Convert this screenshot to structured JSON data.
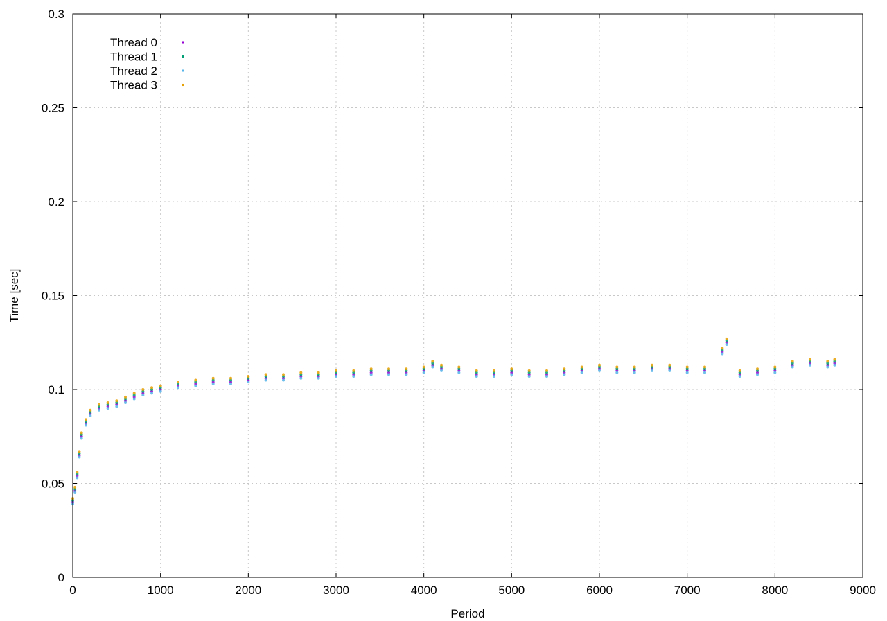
{
  "chart_data": {
    "type": "scatter",
    "xlabel": "Period",
    "ylabel": "Time [sec]",
    "xlim": [
      0,
      9000
    ],
    "ylim": [
      0,
      0.3
    ],
    "x_ticks": [
      0,
      1000,
      2000,
      3000,
      4000,
      5000,
      6000,
      7000,
      8000,
      9000
    ],
    "x_tick_labels": [
      "0",
      "1000",
      "2000",
      "3000",
      "4000",
      "5000",
      "6000",
      "7000",
      "8000",
      "9000"
    ],
    "y_ticks": [
      0,
      0.05,
      0.1,
      0.15,
      0.2,
      0.25,
      0.3
    ],
    "y_tick_labels": [
      "0",
      "0.05",
      "0.1",
      "0.15",
      "0.2",
      "0.25",
      "0.3"
    ],
    "grid": true,
    "legend_position": "top-left",
    "series": [
      {
        "name": "Thread 0",
        "color": "#9400d3",
        "x": [
          0,
          25,
          50,
          75,
          100,
          150,
          200,
          300,
          400,
          500,
          600,
          700,
          800,
          900,
          1000,
          1200,
          1400,
          1600,
          1800,
          2000,
          2200,
          2400,
          2600,
          2800,
          3000,
          3200,
          3400,
          3600,
          3800,
          4000,
          4100,
          4200,
          4400,
          4600,
          4800,
          5000,
          5200,
          5400,
          5600,
          5800,
          6000,
          6200,
          6400,
          6600,
          6800,
          7000,
          7200,
          7400,
          7450,
          7600,
          7800,
          8000,
          8200,
          8400,
          8600,
          8680
        ],
        "y": [
          0.04,
          0.046,
          0.054,
          0.065,
          0.075,
          0.082,
          0.087,
          0.09,
          0.091,
          0.092,
          0.094,
          0.096,
          0.098,
          0.099,
          0.1,
          0.102,
          0.103,
          0.104,
          0.104,
          0.105,
          0.106,
          0.106,
          0.107,
          0.107,
          0.108,
          0.108,
          0.109,
          0.109,
          0.109,
          0.11,
          0.113,
          0.111,
          0.11,
          0.108,
          0.108,
          0.109,
          0.108,
          0.108,
          0.109,
          0.11,
          0.111,
          0.11,
          0.11,
          0.111,
          0.111,
          0.11,
          0.11,
          0.12,
          0.125,
          0.108,
          0.109,
          0.11,
          0.113,
          0.114,
          0.113,
          0.114
        ]
      },
      {
        "name": "Thread 1",
        "color": "#009e73",
        "x": [
          0,
          25,
          50,
          75,
          100,
          150,
          200,
          300,
          400,
          500,
          600,
          700,
          800,
          900,
          1000,
          1200,
          1400,
          1600,
          1800,
          2000,
          2200,
          2400,
          2600,
          2800,
          3000,
          3200,
          3400,
          3600,
          3800,
          4000,
          4100,
          4200,
          4400,
          4600,
          4800,
          5000,
          5200,
          5400,
          5600,
          5800,
          6000,
          6200,
          6400,
          6600,
          6800,
          7000,
          7200,
          7400,
          7450,
          7600,
          7800,
          8000,
          8200,
          8400,
          8600,
          8680
        ],
        "y": [
          0.041,
          0.047,
          0.055,
          0.066,
          0.076,
          0.083,
          0.088,
          0.091,
          0.092,
          0.093,
          0.095,
          0.097,
          0.099,
          0.1,
          0.101,
          0.103,
          0.104,
          0.105,
          0.105,
          0.106,
          0.107,
          0.107,
          0.108,
          0.108,
          0.109,
          0.109,
          0.11,
          0.11,
          0.11,
          0.111,
          0.114,
          0.112,
          0.111,
          0.109,
          0.109,
          0.11,
          0.109,
          0.109,
          0.11,
          0.111,
          0.112,
          0.111,
          0.111,
          0.112,
          0.112,
          0.111,
          0.111,
          0.121,
          0.126,
          0.109,
          0.11,
          0.111,
          0.114,
          0.115,
          0.114,
          0.115
        ]
      },
      {
        "name": "Thread 2",
        "color": "#56b4e9",
        "x": [
          0,
          25,
          50,
          75,
          100,
          150,
          200,
          300,
          400,
          500,
          600,
          700,
          800,
          900,
          1000,
          1200,
          1400,
          1600,
          1800,
          2000,
          2200,
          2400,
          2600,
          2800,
          3000,
          3200,
          3400,
          3600,
          3800,
          4000,
          4100,
          4200,
          4400,
          4600,
          4800,
          5000,
          5200,
          5400,
          5600,
          5800,
          6000,
          6200,
          6400,
          6600,
          6800,
          7000,
          7200,
          7400,
          7450,
          7600,
          7800,
          8000,
          8200,
          8400,
          8600,
          8680
        ],
        "y": [
          0.039,
          0.045,
          0.053,
          0.064,
          0.074,
          0.081,
          0.086,
          0.089,
          0.09,
          0.091,
          0.093,
          0.095,
          0.097,
          0.098,
          0.099,
          0.101,
          0.102,
          0.103,
          0.103,
          0.104,
          0.105,
          0.105,
          0.106,
          0.106,
          0.107,
          0.107,
          0.108,
          0.108,
          0.108,
          0.109,
          0.112,
          0.11,
          0.109,
          0.107,
          0.107,
          0.108,
          0.107,
          0.107,
          0.108,
          0.109,
          0.11,
          0.109,
          0.109,
          0.11,
          0.11,
          0.109,
          0.109,
          0.119,
          0.124,
          0.107,
          0.108,
          0.109,
          0.112,
          0.113,
          0.112,
          0.113
        ]
      },
      {
        "name": "Thread 3",
        "color": "#e69f00",
        "x": [
          0,
          25,
          50,
          75,
          100,
          150,
          200,
          300,
          400,
          500,
          600,
          700,
          800,
          900,
          1000,
          1200,
          1400,
          1600,
          1800,
          2000,
          2200,
          2400,
          2600,
          2800,
          3000,
          3200,
          3400,
          3600,
          3800,
          4000,
          4100,
          4200,
          4400,
          4600,
          4800,
          5000,
          5200,
          5400,
          5600,
          5800,
          6000,
          6200,
          6400,
          6600,
          6800,
          7000,
          7200,
          7400,
          7450,
          7600,
          7800,
          8000,
          8200,
          8400,
          8600,
          8680
        ],
        "y": [
          0.042,
          0.048,
          0.056,
          0.067,
          0.077,
          0.084,
          0.089,
          0.092,
          0.093,
          0.094,
          0.096,
          0.098,
          0.1,
          0.101,
          0.102,
          0.104,
          0.105,
          0.106,
          0.106,
          0.107,
          0.108,
          0.108,
          0.109,
          0.109,
          0.11,
          0.11,
          0.111,
          0.111,
          0.111,
          0.112,
          0.115,
          0.113,
          0.112,
          0.11,
          0.11,
          0.111,
          0.11,
          0.11,
          0.111,
          0.112,
          0.113,
          0.112,
          0.112,
          0.113,
          0.113,
          0.112,
          0.112,
          0.122,
          0.127,
          0.11,
          0.111,
          0.112,
          0.115,
          0.116,
          0.115,
          0.116
        ]
      }
    ]
  }
}
